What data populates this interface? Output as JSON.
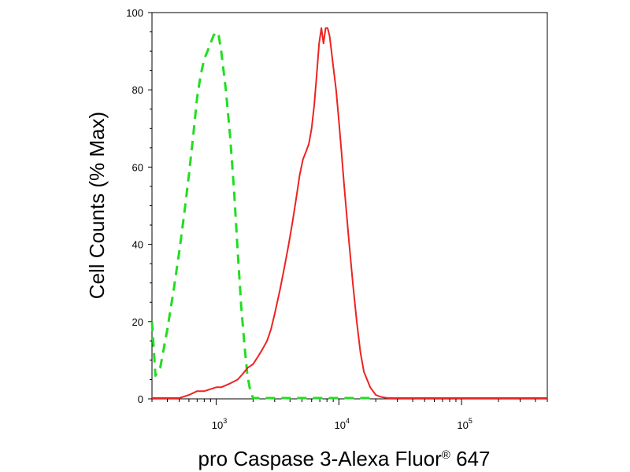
{
  "chart_data": {
    "type": "line",
    "title": "",
    "xlabel": "pro Caspase 3-Alexa Fluor",
    "xlabel_superscript": "®",
    "xlabel_suffix": " 647",
    "ylabel": "Cell Counts (% Max)",
    "x_scale": "log",
    "xlim": [
      300,
      500000
    ],
    "ylim": [
      0,
      100
    ],
    "y_ticks": [
      0,
      20,
      40,
      60,
      80,
      100
    ],
    "y_tick_labels": [
      "0",
      "20",
      "40",
      "60",
      "80",
      "100"
    ],
    "x_ticks": [
      1000,
      10000,
      100000
    ],
    "x_tick_labels": [
      {
        "base": "10",
        "exp": "3"
      },
      {
        "base": "10",
        "exp": "4"
      },
      {
        "base": "10",
        "exp": "5"
      }
    ],
    "grid": false,
    "legend": "none",
    "series": [
      {
        "color": "#22dd22",
        "dash": "dashed",
        "x": [
          300,
          320,
          350,
          400,
          450,
          500,
          550,
          600,
          650,
          700,
          750,
          800,
          850,
          900,
          950,
          1000,
          1050,
          1100,
          1200,
          1300,
          1400,
          1500,
          1600,
          1700,
          1800,
          1900,
          2000,
          2200,
          2500,
          3000,
          4000,
          6000,
          10000,
          20000
        ],
        "y": [
          20,
          6,
          8,
          18,
          28,
          38,
          48,
          58,
          68,
          78,
          84,
          88,
          90,
          92,
          94,
          95,
          94,
          90,
          80,
          68,
          54,
          38,
          24,
          14,
          6,
          2,
          0,
          0,
          0,
          0,
          0,
          0,
          0,
          0
        ]
      },
      {
        "color": "#ee2222",
        "dash": "solid",
        "x": [
          300,
          500,
          600,
          700,
          800,
          900,
          1000,
          1100,
          1200,
          1300,
          1400,
          1500,
          1600,
          1700,
          1800,
          1900,
          2000,
          2200,
          2400,
          2600,
          2800,
          3000,
          3300,
          3600,
          3900,
          4200,
          4500,
          4800,
          5100,
          5400,
          5700,
          6000,
          6300,
          6600,
          6900,
          7200,
          7500,
          7800,
          8100,
          8400,
          8700,
          9000,
          9500,
          10000,
          10500,
          11000,
          12000,
          13000,
          14000,
          15000,
          16000,
          18000,
          20000,
          22000,
          25000,
          30000,
          50000,
          100000,
          500000
        ],
        "y": [
          0,
          0,
          1,
          2,
          2,
          2.5,
          3,
          3,
          3.5,
          4,
          4.5,
          5,
          6,
          7,
          8,
          8.5,
          9,
          11,
          13,
          15,
          18,
          22,
          28,
          34,
          40,
          46,
          52,
          58,
          62,
          64,
          66,
          70,
          76,
          84,
          92,
          96,
          92,
          96,
          96,
          94,
          90,
          86,
          80,
          72,
          64,
          56,
          42,
          30,
          20,
          12,
          7,
          3,
          1,
          0.5,
          0,
          0,
          0,
          0,
          0
        ]
      }
    ]
  }
}
